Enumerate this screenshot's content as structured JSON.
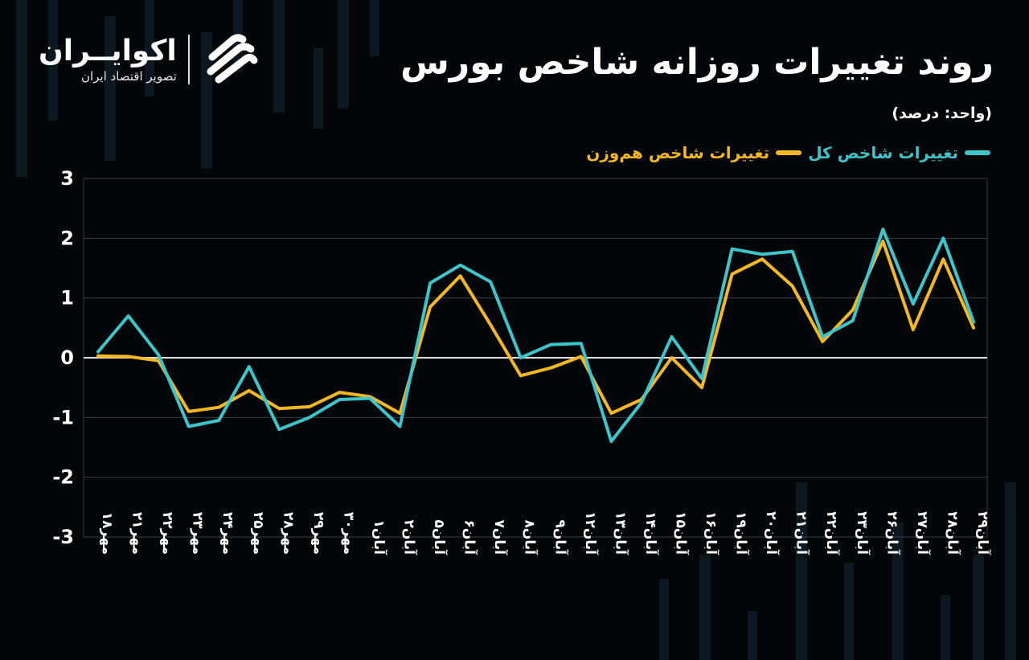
{
  "header": {
    "title": "روند تغییرات روزانه شاخص بورس",
    "unit": "(واحد: درصد)"
  },
  "brand": {
    "name": "اکوایــران",
    "tagline": "تصویر اقتصاد ایران",
    "icon": "ecoiran-stripes-logo"
  },
  "colors": {
    "background": "#030608",
    "total_index": "#3cc6cb",
    "equal_weight_index": "#f5b820",
    "grid": "#3a3f44",
    "zero_line": "#e0e0e0"
  },
  "chart_data": {
    "type": "line",
    "title": "روند تغییرات روزانه شاخص بورس",
    "ylabel": "",
    "xlabel": "",
    "ylim": [
      -3,
      3
    ],
    "yticks": [
      "3",
      "2",
      "1",
      "0",
      "-1",
      "-2",
      "-3"
    ],
    "grid": true,
    "legend_position": "top-right",
    "categories": [
      "مهر۱۸",
      "مهر۲۱",
      "مهر۲۲",
      "مهر۲۳",
      "مهر۲۴",
      "مهر۲۵",
      "مهر۲۸",
      "مهر۲۹",
      "مهر۳۰",
      "آبان۱",
      "آبان۲",
      "آبان۵",
      "آبان۶",
      "آبان۷",
      "آبان۸",
      "آبان۹",
      "آبان۱۲",
      "آبان۱۳",
      "آبان۱۴",
      "آبان۱۵",
      "آبان۱۶",
      "آبان۱۹",
      "آبان۲۰",
      "آبان۲۱",
      "آبان۲۲",
      "آبان۲۳",
      "آبان۲۶",
      "آبان۲۷",
      "آبان۲۸",
      "آبان۲۹"
    ],
    "series": [
      {
        "name": "تغییرات شاخص کل",
        "color": "#3cc6cb",
        "values": [
          0.1,
          0.7,
          0.05,
          -1.15,
          -1.05,
          -0.15,
          -1.2,
          -1.0,
          -0.7,
          -0.68,
          -1.15,
          1.25,
          1.55,
          1.27,
          0.0,
          0.22,
          0.24,
          -1.4,
          -0.75,
          0.35,
          -0.35,
          1.82,
          1.73,
          1.78,
          0.35,
          0.62,
          2.15,
          0.9,
          2.0,
          0.6
        ]
      },
      {
        "name": "تغییرات شاخص هم‌وزن",
        "color": "#f5b820",
        "values": [
          0.03,
          0.02,
          -0.05,
          -0.9,
          -0.83,
          -0.55,
          -0.85,
          -0.82,
          -0.58,
          -0.65,
          -0.93,
          0.85,
          1.37,
          0.55,
          -0.3,
          -0.17,
          0.02,
          -0.93,
          -0.7,
          0.0,
          -0.5,
          1.4,
          1.65,
          1.2,
          0.27,
          0.8,
          1.95,
          0.47,
          1.65,
          0.5
        ]
      }
    ]
  }
}
